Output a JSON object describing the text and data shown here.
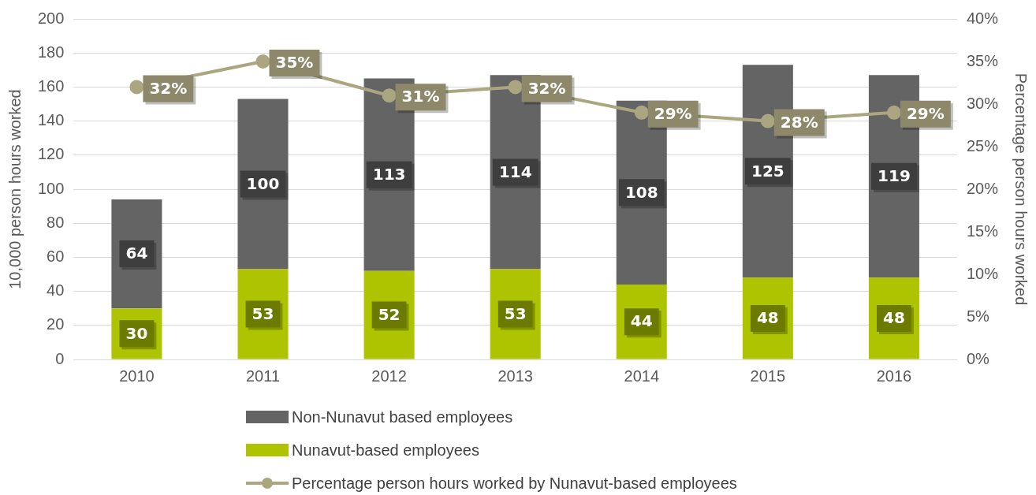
{
  "chart_data": {
    "type": "bar",
    "stacked": true,
    "categories": [
      "2010",
      "2011",
      "2012",
      "2013",
      "2014",
      "2015",
      "2016"
    ],
    "ylabel": "10,000 person hours worked",
    "y2label": "Percentage person hours worked",
    "ylim": [
      0,
      200
    ],
    "yticks": [
      0,
      20,
      40,
      60,
      80,
      100,
      120,
      140,
      160,
      180,
      200
    ],
    "y2lim": [
      0,
      40
    ],
    "y2ticks": [
      {
        "value": 0,
        "label": "0%"
      },
      {
        "value": 5,
        "label": "5%"
      },
      {
        "value": 10,
        "label": "10%"
      },
      {
        "value": 15,
        "label": "15%"
      },
      {
        "value": 20,
        "label": "20%"
      },
      {
        "value": 25,
        "label": "25%"
      },
      {
        "value": 30,
        "label": "30%"
      },
      {
        "value": 35,
        "label": "35%"
      },
      {
        "value": 40,
        "label": "40%"
      }
    ],
    "grid": "y",
    "legend": "bottom",
    "marker": "circle",
    "series": [
      {
        "name": "Nunavut-based employees",
        "color": "#aec400",
        "values": [
          30,
          53,
          52,
          53,
          44,
          48,
          48
        ],
        "value_labels": [
          "30",
          "53",
          "52",
          "53",
          "44",
          "48",
          "48"
        ]
      },
      {
        "name": "Non-Nunavut based employees",
        "color": "#646464",
        "values": [
          64,
          100,
          113,
          114,
          108,
          125,
          119
        ],
        "value_labels": [
          "64",
          "100",
          "113",
          "114",
          "108",
          "125",
          "119"
        ]
      },
      {
        "name": "Percentage person hours worked by Nunavut-based employees",
        "type": "line",
        "axis": "y2",
        "color": "#aba680",
        "values": [
          32,
          35,
          31,
          32,
          29,
          28,
          29
        ],
        "value_labels": [
          "32%",
          "35%",
          "31%",
          "32%",
          "29%",
          "28%",
          "29%"
        ]
      }
    ]
  }
}
